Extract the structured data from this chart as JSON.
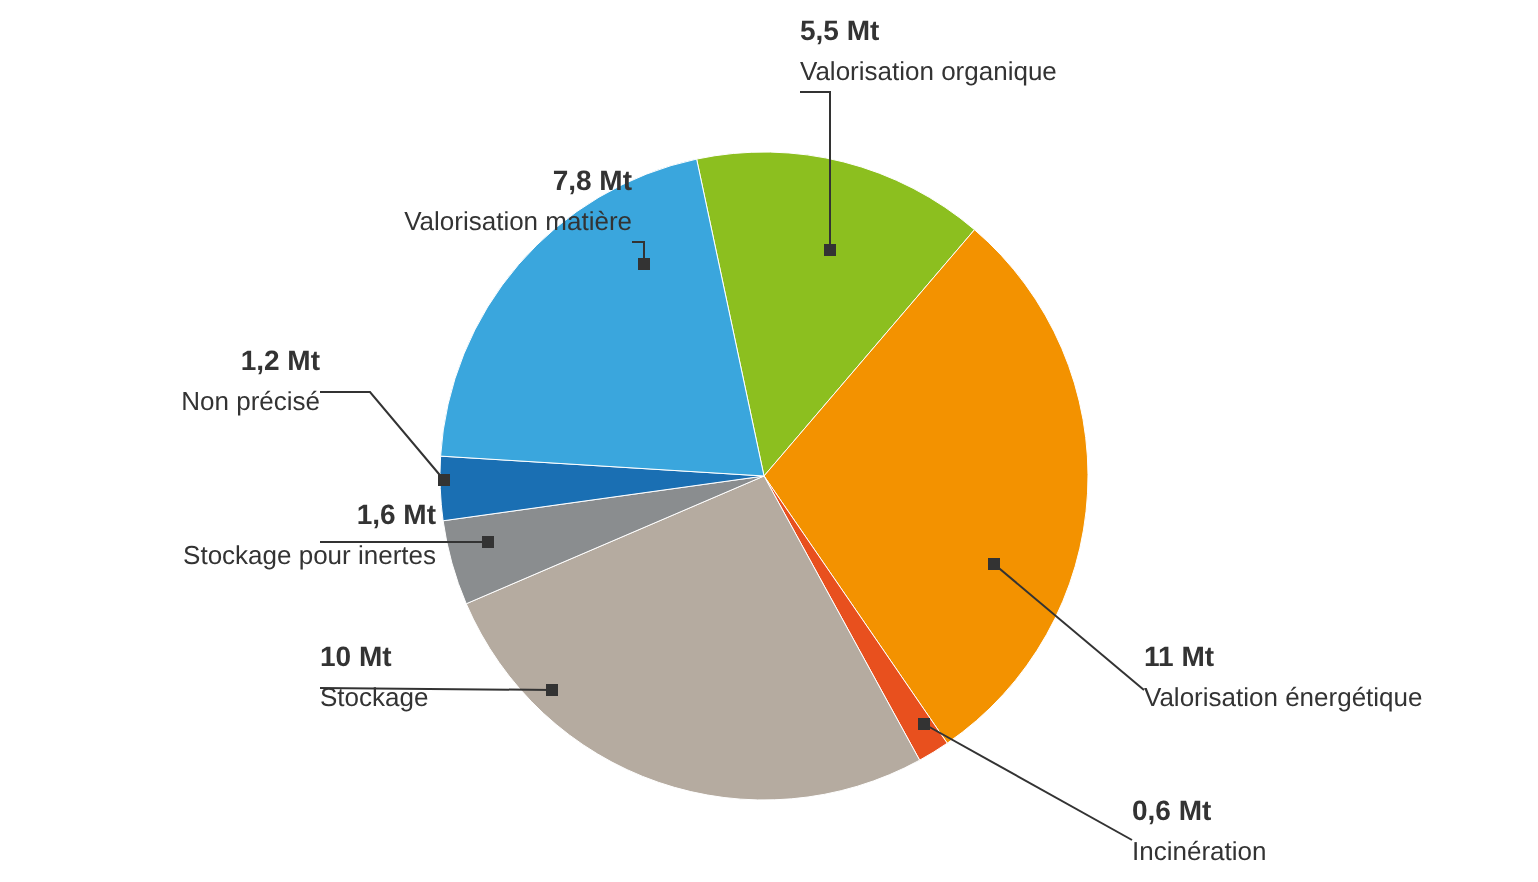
{
  "chart_data": {
    "type": "pie",
    "categories": [
      "Valorisation organique",
      "Valorisation énergétique",
      "Incinération",
      "Stockage",
      "Stockage pour inertes",
      "Non précisé",
      "Valorisation matière"
    ],
    "values": [
      5.5,
      11,
      0.6,
      10,
      1.6,
      1.2,
      7.8
    ],
    "value_labels": [
      "5,5 Mt",
      "11 Mt",
      "0,6 Mt",
      "10 Mt",
      "1,6 Mt",
      "1,2 Mt",
      "7,8 Mt"
    ],
    "colors": [
      "#8cbf1f",
      "#f39200",
      "#e8501e",
      "#b5aba0",
      "#8a8d8f",
      "#1a6fb3",
      "#3aa6dd"
    ]
  }
}
